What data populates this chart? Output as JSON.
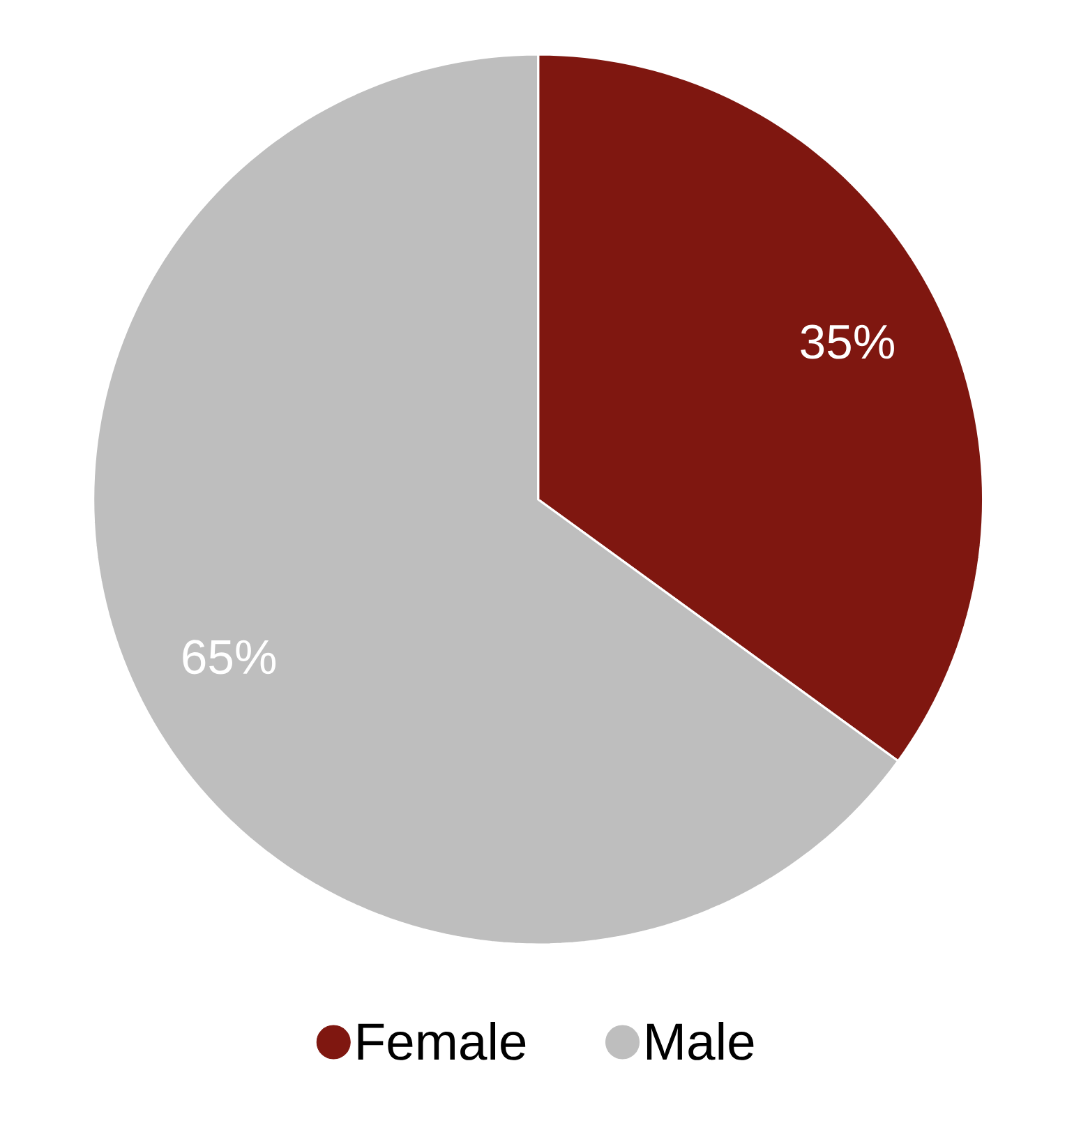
{
  "chart_data": {
    "type": "pie",
    "categories": [
      "Female",
      "Male"
    ],
    "values": [
      35,
      65
    ],
    "colors": [
      "#7f1710",
      "#bebebe"
    ],
    "value_labels": [
      "35%",
      "65%"
    ],
    "legend": "bottom"
  }
}
